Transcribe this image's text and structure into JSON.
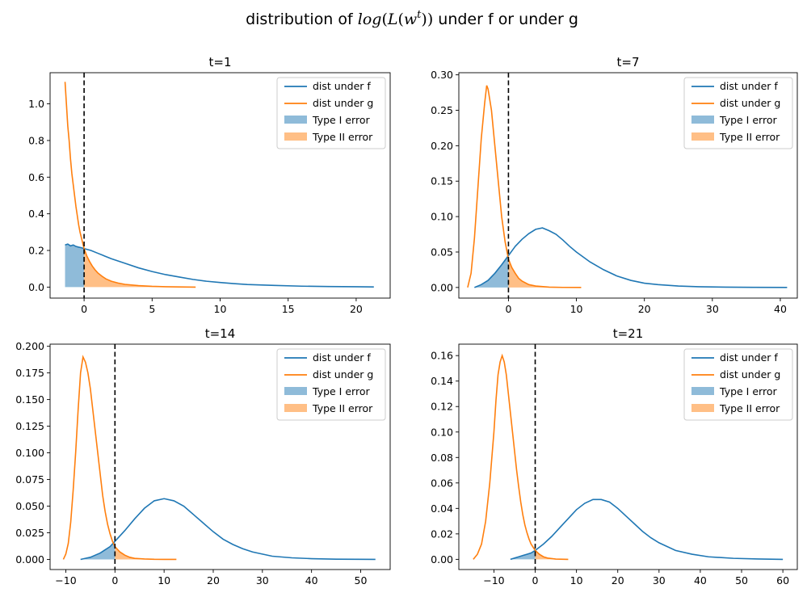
{
  "figure": {
    "suptitle_prefix": "distribution of ",
    "suptitle_math_a": "log",
    "suptitle_math_b": "(",
    "suptitle_math_c": "L",
    "suptitle_math_d": "(",
    "suptitle_math_e": "w",
    "suptitle_math_sup": "t",
    "suptitle_math_f": "))",
    "suptitle_suffix": " under f or under g",
    "colors": {
      "f": "#1f77b4",
      "g": "#ff7f0e",
      "threshold": "#000000"
    },
    "legend_labels": [
      "dist under f",
      "dist under g",
      "Type I error",
      "Type II error"
    ]
  },
  "chart_data": [
    {
      "type": "line",
      "title": "t=1",
      "xlim": [
        -2.5,
        22.5
      ],
      "ylim": [
        -0.06,
        1.17
      ],
      "xticks": [
        0,
        5,
        10,
        15,
        20
      ],
      "xtick_labels": [
        "0",
        "5",
        "10",
        "15",
        "20"
      ],
      "yticks": [
        0.0,
        0.2,
        0.4,
        0.6,
        0.8,
        1.0
      ],
      "ytick_labels": [
        "0.0",
        "0.2",
        "0.4",
        "0.6",
        "0.8",
        "1.0"
      ],
      "threshold": 0,
      "series": [
        {
          "key": "f",
          "label": "dist under f",
          "x": [
            -1.4,
            -1.2,
            -1.0,
            -0.8,
            -0.6,
            -0.4,
            -0.2,
            0,
            0.5,
            1,
            1.5,
            2,
            3,
            4,
            5,
            6,
            7,
            8,
            9,
            10,
            11,
            12,
            14,
            16,
            18,
            20,
            21.3
          ],
          "y": [
            0.23,
            0.235,
            0.225,
            0.23,
            0.222,
            0.218,
            0.215,
            0.21,
            0.2,
            0.185,
            0.17,
            0.155,
            0.13,
            0.105,
            0.085,
            0.068,
            0.055,
            0.042,
            0.032,
            0.025,
            0.019,
            0.014,
            0.009,
            0.005,
            0.003,
            0.002,
            0.001
          ]
        },
        {
          "key": "g",
          "label": "dist under g",
          "x": [
            -1.4,
            -1.3,
            -1.2,
            -1.1,
            -1.0,
            -0.9,
            -0.8,
            -0.7,
            -0.6,
            -0.5,
            -0.4,
            -0.3,
            -0.2,
            -0.1,
            0,
            0.2,
            0.4,
            0.6,
            0.8,
            1.0,
            1.3,
            1.6,
            2.0,
            2.5,
            3.0,
            4.0,
            5.0,
            6.0,
            7.0,
            8.2
          ],
          "y": [
            1.12,
            1.0,
            0.88,
            0.8,
            0.7,
            0.62,
            0.56,
            0.5,
            0.44,
            0.39,
            0.34,
            0.3,
            0.27,
            0.24,
            0.21,
            0.17,
            0.14,
            0.115,
            0.095,
            0.078,
            0.06,
            0.045,
            0.032,
            0.022,
            0.015,
            0.008,
            0.004,
            0.002,
            0.001,
            0.0
          ]
        }
      ]
    },
    {
      "type": "line",
      "title": "t=7",
      "xlim": [
        -7.3,
        42.5
      ],
      "ylim": [
        -0.015,
        0.303
      ],
      "xticks": [
        0,
        10,
        20,
        30,
        40
      ],
      "xtick_labels": [
        "0",
        "10",
        "20",
        "30",
        "40"
      ],
      "yticks": [
        0.0,
        0.05,
        0.1,
        0.15,
        0.2,
        0.25,
        0.3
      ],
      "ytick_labels": [
        "0.00",
        "0.05",
        "0.10",
        "0.15",
        "0.20",
        "0.25",
        "0.30"
      ],
      "threshold": 0,
      "series": [
        {
          "key": "f",
          "label": "dist under f",
          "x": [
            -5,
            -4,
            -3,
            -2,
            -1,
            0,
            1,
            2,
            3,
            4,
            5,
            6,
            7,
            8,
            9,
            10,
            12,
            14,
            16,
            18,
            20,
            22,
            25,
            28,
            32,
            36,
            41
          ],
          "y": [
            0.0,
            0.004,
            0.01,
            0.02,
            0.032,
            0.045,
            0.058,
            0.068,
            0.076,
            0.082,
            0.084,
            0.08,
            0.075,
            0.067,
            0.058,
            0.05,
            0.036,
            0.025,
            0.016,
            0.01,
            0.006,
            0.004,
            0.002,
            0.001,
            0.0005,
            0.0002,
            0.0
          ]
        },
        {
          "key": "g",
          "label": "dist under g",
          "x": [
            -6,
            -5.5,
            -5,
            -4.5,
            -4,
            -3.5,
            -3.2,
            -3.0,
            -2.5,
            -2,
            -1.5,
            -1,
            -0.5,
            0,
            0.5,
            1,
            1.5,
            2,
            3,
            4,
            6,
            8,
            10.7
          ],
          "y": [
            0.0,
            0.02,
            0.07,
            0.14,
            0.21,
            0.26,
            0.285,
            0.28,
            0.25,
            0.2,
            0.15,
            0.1,
            0.065,
            0.04,
            0.028,
            0.02,
            0.013,
            0.009,
            0.004,
            0.002,
            0.0005,
            0.0001,
            0.0
          ]
        }
      ]
    },
    {
      "type": "line",
      "title": "t=14",
      "xlim": [
        -13.2,
        56
      ],
      "ylim": [
        -0.0095,
        0.202
      ],
      "xticks": [
        -10,
        0,
        10,
        20,
        30,
        40,
        50
      ],
      "xtick_labels": [
        "−10",
        "0",
        "10",
        "20",
        "30",
        "40",
        "50"
      ],
      "yticks": [
        0.0,
        0.025,
        0.05,
        0.075,
        0.1,
        0.125,
        0.15,
        0.175,
        0.2
      ],
      "ytick_labels": [
        "0.000",
        "0.025",
        "0.050",
        "0.075",
        "0.100",
        "0.125",
        "0.150",
        "0.175",
        "0.200"
      ],
      "threshold": 0,
      "series": [
        {
          "key": "f",
          "label": "dist under f",
          "x": [
            -7,
            -6,
            -5,
            -4,
            -3,
            -2,
            -1,
            0,
            2,
            4,
            6,
            8,
            10,
            12,
            14,
            16,
            18,
            20,
            22,
            24,
            26,
            28,
            32,
            36,
            40,
            45,
            53
          ],
          "y": [
            0.0,
            0.001,
            0.002,
            0.004,
            0.006,
            0.009,
            0.012,
            0.017,
            0.027,
            0.038,
            0.048,
            0.055,
            0.057,
            0.055,
            0.05,
            0.042,
            0.034,
            0.026,
            0.019,
            0.014,
            0.01,
            0.007,
            0.003,
            0.0015,
            0.0007,
            0.0002,
            0.0
          ]
        },
        {
          "key": "g",
          "label": "dist under g",
          "x": [
            -10.5,
            -10,
            -9.5,
            -9,
            -8.5,
            -8,
            -7.5,
            -7,
            -6.5,
            -6,
            -5.5,
            -5,
            -4.5,
            -4,
            -3.5,
            -3,
            -2.5,
            -2,
            -1.5,
            -1,
            -0.5,
            0,
            1,
            2,
            3,
            4,
            6,
            8,
            10,
            12.5
          ],
          "y": [
            0.0,
            0.005,
            0.015,
            0.035,
            0.065,
            0.1,
            0.14,
            0.175,
            0.19,
            0.185,
            0.175,
            0.16,
            0.14,
            0.12,
            0.1,
            0.08,
            0.06,
            0.045,
            0.033,
            0.024,
            0.017,
            0.012,
            0.007,
            0.004,
            0.002,
            0.001,
            0.0004,
            0.0001,
            0.0,
            0.0
          ]
        }
      ]
    },
    {
      "type": "line",
      "title": "t=21",
      "xlim": [
        -18.5,
        63.5
      ],
      "ylim": [
        -0.008,
        0.169
      ],
      "xticks": [
        -10,
        0,
        10,
        20,
        30,
        40,
        50,
        60
      ],
      "xtick_labels": [
        "−10",
        "0",
        "10",
        "20",
        "30",
        "40",
        "50",
        "60"
      ],
      "yticks": [
        0.0,
        0.02,
        0.04,
        0.06,
        0.08,
        0.1,
        0.12,
        0.14,
        0.16
      ],
      "ytick_labels": [
        "0.00",
        "0.02",
        "0.04",
        "0.06",
        "0.08",
        "0.10",
        "0.12",
        "0.14",
        "0.16"
      ],
      "threshold": 0,
      "series": [
        {
          "key": "f",
          "label": "dist under f",
          "x": [
            -6,
            -5,
            -4,
            -3,
            -2,
            -1,
            0,
            2,
            4,
            6,
            8,
            10,
            12,
            14,
            16,
            18,
            20,
            22,
            24,
            26,
            28,
            30,
            34,
            38,
            42,
            48,
            54,
            60
          ],
          "y": [
            0.0,
            0.001,
            0.002,
            0.003,
            0.004,
            0.005,
            0.007,
            0.012,
            0.018,
            0.025,
            0.032,
            0.039,
            0.044,
            0.047,
            0.047,
            0.045,
            0.04,
            0.034,
            0.028,
            0.022,
            0.017,
            0.013,
            0.007,
            0.004,
            0.002,
            0.0008,
            0.0003,
            0.0
          ]
        },
        {
          "key": "g",
          "label": "dist under g",
          "x": [
            -15,
            -14,
            -13,
            -12,
            -11,
            -10,
            -9.5,
            -9,
            -8.5,
            -8,
            -7.5,
            -7,
            -6.5,
            -6,
            -5.5,
            -5,
            -4.5,
            -4,
            -3.5,
            -3,
            -2.5,
            -2,
            -1.5,
            -1,
            0,
            1,
            2,
            3,
            5,
            8
          ],
          "y": [
            0.0,
            0.004,
            0.012,
            0.03,
            0.06,
            0.1,
            0.125,
            0.145,
            0.155,
            0.16,
            0.155,
            0.145,
            0.13,
            0.115,
            0.1,
            0.085,
            0.07,
            0.057,
            0.045,
            0.035,
            0.027,
            0.021,
            0.016,
            0.012,
            0.007,
            0.004,
            0.002,
            0.001,
            0.0002,
            0.0
          ]
        }
      ]
    }
  ]
}
